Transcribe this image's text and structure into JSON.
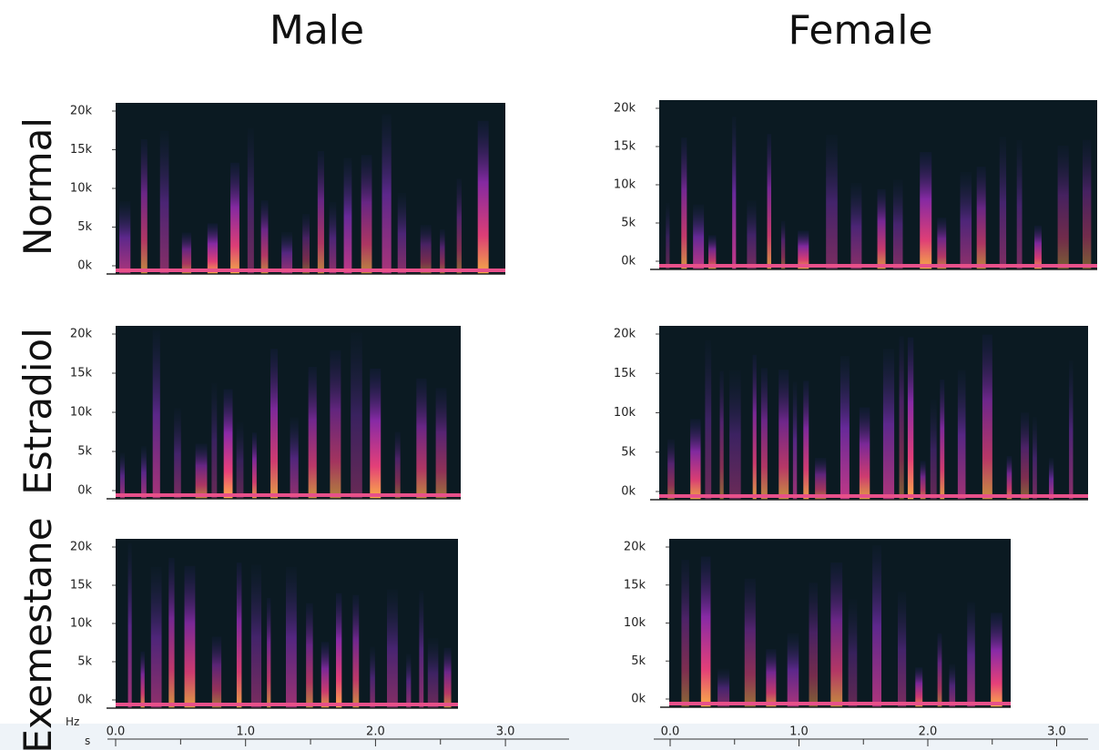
{
  "columns": [
    "Male",
    "Female"
  ],
  "rows": [
    "Normal",
    "Estradiol",
    "Exemestane"
  ],
  "freq_axis": {
    "unit": "Hz",
    "ticks": [
      {
        "value": 0,
        "label": "0k"
      },
      {
        "value": 5000,
        "label": "5k"
      },
      {
        "value": 10000,
        "label": "10k"
      },
      {
        "value": 15000,
        "label": "15k"
      },
      {
        "value": 20000,
        "label": "20k"
      }
    ]
  },
  "time_axis": {
    "unit": "s",
    "ticks": [
      {
        "value": 0,
        "label": "0.0"
      },
      {
        "value": 1,
        "label": "1.0"
      },
      {
        "value": 2,
        "label": "2.0"
      },
      {
        "value": 3,
        "label": "3.0"
      }
    ]
  }
}
